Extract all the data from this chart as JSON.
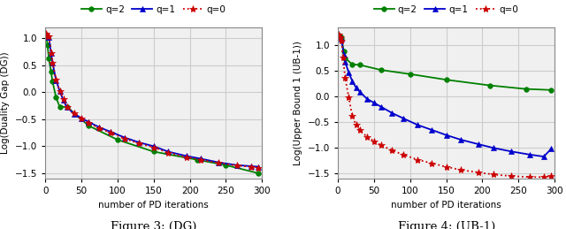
{
  "fig3": {
    "title": "Figure 3: (DG)",
    "xlabel": "number of PD iterations",
    "ylabel": "Log(Duality Gap (DG))",
    "ylim": [
      -1.6,
      1.2
    ],
    "xlim": [
      0,
      300
    ],
    "q2_x": [
      1,
      3,
      5,
      8,
      10,
      15,
      20,
      30,
      60,
      100,
      150,
      210,
      250,
      295
    ],
    "q2_y": [
      1.07,
      0.88,
      0.62,
      0.38,
      0.2,
      -0.1,
      -0.27,
      -0.27,
      -0.62,
      -0.88,
      -1.1,
      -1.25,
      -1.35,
      -1.5
    ],
    "q1_x": [
      1,
      3,
      5,
      8,
      10,
      15,
      20,
      25,
      30,
      40,
      50,
      60,
      75,
      90,
      110,
      130,
      150,
      170,
      195,
      215,
      240,
      265,
      285,
      295
    ],
    "q1_y": [
      1.07,
      1.03,
      1.02,
      0.72,
      0.55,
      0.22,
      0.02,
      -0.15,
      -0.28,
      -0.4,
      -0.48,
      -0.55,
      -0.65,
      -0.73,
      -0.84,
      -0.93,
      -1.0,
      -1.1,
      -1.18,
      -1.23,
      -1.3,
      -1.35,
      -1.37,
      -1.38
    ],
    "q0_x": [
      1,
      3,
      5,
      8,
      10,
      15,
      20,
      25,
      30,
      40,
      50,
      60,
      75,
      90,
      110,
      130,
      150,
      170,
      195,
      215,
      240,
      265,
      285,
      295
    ],
    "q0_y": [
      1.08,
      1.04,
      1.03,
      0.73,
      0.55,
      0.23,
      0.03,
      -0.13,
      -0.27,
      -0.38,
      -0.48,
      -0.57,
      -0.67,
      -0.75,
      -0.86,
      -0.95,
      -1.02,
      -1.12,
      -1.2,
      -1.25,
      -1.31,
      -1.36,
      -1.38,
      -1.4
    ]
  },
  "fig4": {
    "title": "Figure 4: (UB-1)",
    "xlabel": "number of PD iterations",
    "ylabel": "Log(Upper Bound 1 (UB-1))",
    "ylim": [
      -1.6,
      1.35
    ],
    "xlim": [
      0,
      300
    ],
    "q2_x": [
      1,
      3,
      5,
      8,
      10,
      20,
      30,
      60,
      100,
      150,
      210,
      260,
      295
    ],
    "q2_y": [
      1.2,
      1.18,
      1.15,
      0.88,
      0.75,
      0.63,
      0.62,
      0.52,
      0.44,
      0.33,
      0.22,
      0.15,
      0.13
    ],
    "q1_x": [
      1,
      3,
      5,
      8,
      10,
      15,
      20,
      25,
      30,
      40,
      50,
      60,
      75,
      90,
      110,
      130,
      150,
      170,
      195,
      215,
      240,
      265,
      285,
      295
    ],
    "q1_y": [
      1.2,
      1.16,
      1.12,
      0.82,
      0.68,
      0.47,
      0.3,
      0.18,
      0.1,
      -0.04,
      -0.12,
      -0.2,
      -0.32,
      -0.42,
      -0.55,
      -0.65,
      -0.75,
      -0.84,
      -0.93,
      -1.0,
      -1.07,
      -1.13,
      -1.17,
      -1.02
    ],
    "q0_x": [
      1,
      3,
      5,
      7,
      10,
      15,
      20,
      25,
      30,
      40,
      50,
      60,
      75,
      90,
      110,
      130,
      150,
      170,
      195,
      215,
      240,
      265,
      285,
      295
    ],
    "q0_y": [
      1.22,
      1.17,
      1.1,
      0.77,
      0.37,
      -0.02,
      -0.38,
      -0.55,
      -0.65,
      -0.78,
      -0.87,
      -0.95,
      -1.05,
      -1.13,
      -1.23,
      -1.3,
      -1.37,
      -1.43,
      -1.48,
      -1.52,
      -1.55,
      -1.57,
      -1.57,
      -1.55
    ]
  },
  "colors": {
    "q2": "#008000",
    "q1": "#0000cc",
    "q0": "#cc0000"
  },
  "grid_color": "#cccccc",
  "bg_color": "#ffffff",
  "plot_bg": "#f0f0f0",
  "tick_label_size": 7.5,
  "axis_label_size": 7.5,
  "legend_fontsize": 7.5,
  "caption_fontsize": 9.5
}
